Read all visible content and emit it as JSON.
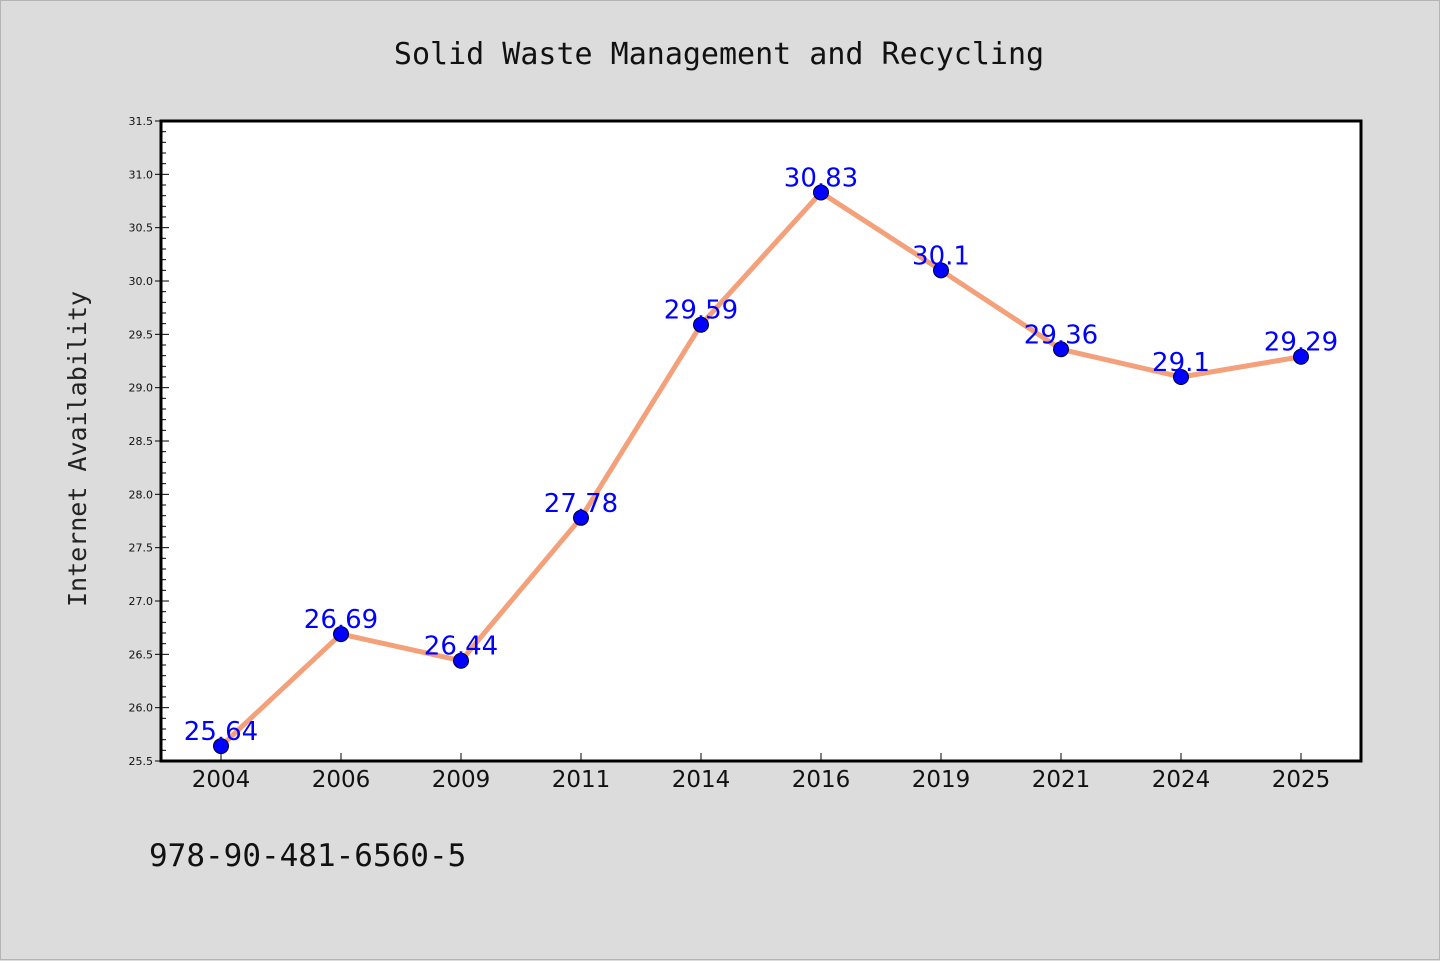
{
  "chart_data": {
    "type": "line",
    "title": "Solid Waste Management and Recycling",
    "xlabel": "",
    "ylabel": "Internet Availability",
    "categories": [
      "2004",
      "2006",
      "2009",
      "2011",
      "2014",
      "2016",
      "2019",
      "2021",
      "2024",
      "2025"
    ],
    "series": [
      {
        "values": [
          25.64,
          26.69,
          26.44,
          27.78,
          29.59,
          30.83,
          30.1,
          29.36,
          29.1,
          29.29
        ],
        "data_labels": [
          "25.64",
          "26.69",
          "26.44",
          "27.78",
          "29.59",
          "30.83",
          "30.1",
          "29.36",
          "29.1",
          "29.29"
        ]
      }
    ],
    "ylim": [
      25.5,
      31.5
    ],
    "yticks": [
      "25.5",
      "26.0",
      "26.5",
      "27.0",
      "27.5",
      "28.0",
      "28.5",
      "29.0",
      "29.5",
      "30.0",
      "30.5",
      "31.0",
      "31.5"
    ],
    "grid": false,
    "legend": "none"
  },
  "footer": {
    "text": "978-90-481-6560-5"
  },
  "colors": {
    "background": "#dcdcdc",
    "plot_background": "#ffffff",
    "line": "#f4a07a",
    "marker": "#0000ff",
    "data_label": "#0000ff"
  }
}
